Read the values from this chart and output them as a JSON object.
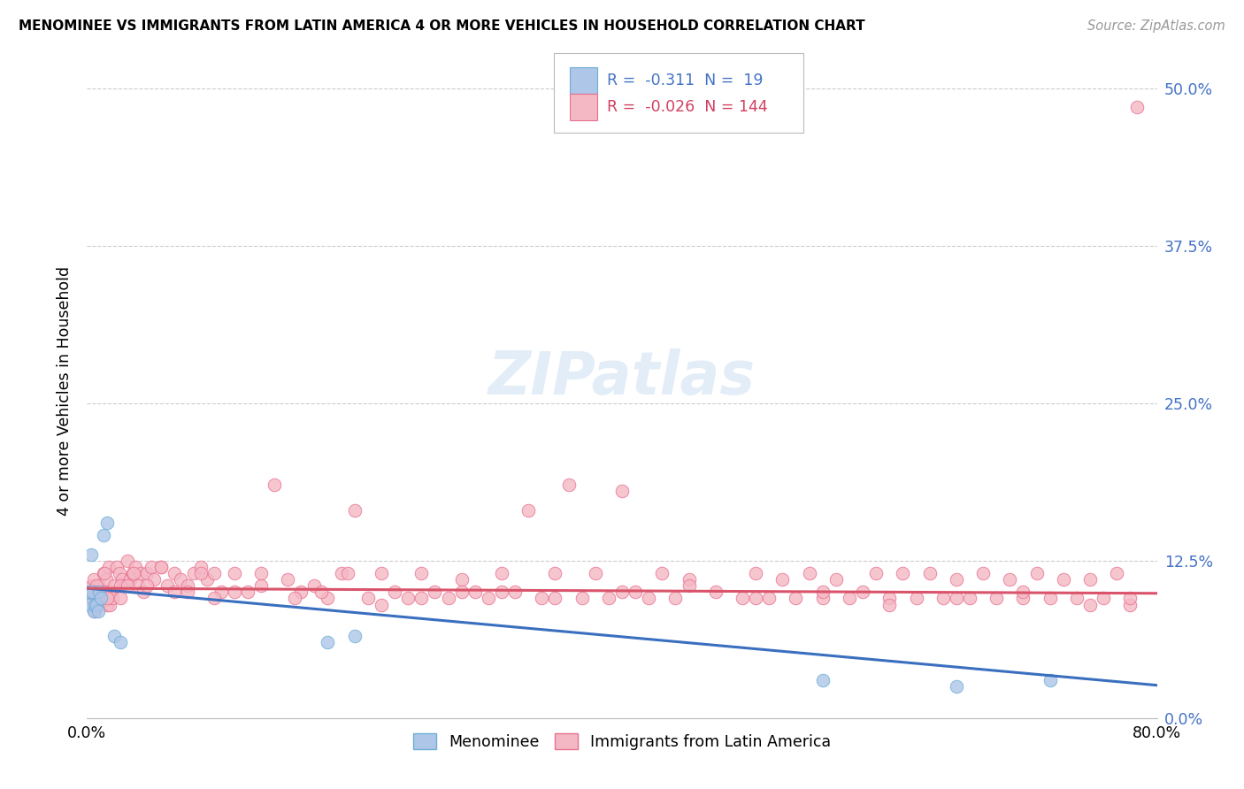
{
  "title": "MENOMINEE VS IMMIGRANTS FROM LATIN AMERICA 4 OR MORE VEHICLES IN HOUSEHOLD CORRELATION CHART",
  "source": "Source: ZipAtlas.com",
  "ylabel": "4 or more Vehicles in Household",
  "xlim": [
    0.0,
    0.8
  ],
  "ylim": [
    0.0,
    0.52
  ],
  "yticks": [
    0.0,
    0.125,
    0.25,
    0.375,
    0.5
  ],
  "ytick_labels": [
    "0.0%",
    "12.5%",
    "25.0%",
    "37.5%",
    "50.0%"
  ],
  "xtick_labels": [
    "0.0%",
    "80.0%"
  ],
  "menominee_color": "#aec6e8",
  "latin_color": "#f4b8c4",
  "menominee_edge": "#6baed6",
  "latin_edge": "#e87090",
  "trend_blue": "#3a6fbf",
  "trend_pink": "#d9536a",
  "R_menominee": -0.311,
  "N_menominee": 19,
  "R_latin": -0.026,
  "N_latin": 144,
  "watermark": "ZIPatlas",
  "background_color": "#ffffff",
  "grid_color": "#cccccc",
  "menominee_x": [
    0.001,
    0.002,
    0.003,
    0.004,
    0.005,
    0.006,
    0.007,
    0.008,
    0.009,
    0.01,
    0.012,
    0.015,
    0.02,
    0.025,
    0.18,
    0.2,
    0.55,
    0.65,
    0.72
  ],
  "menominee_y": [
    0.1,
    0.09,
    0.13,
    0.1,
    0.085,
    0.09,
    0.09,
    0.085,
    0.1,
    0.095,
    0.145,
    0.155,
    0.065,
    0.06,
    0.06,
    0.065,
    0.03,
    0.025,
    0.03
  ],
  "latin_x": [
    0.001,
    0.002,
    0.003,
    0.004,
    0.005,
    0.006,
    0.007,
    0.008,
    0.009,
    0.01,
    0.011,
    0.012,
    0.013,
    0.014,
    0.015,
    0.016,
    0.017,
    0.018,
    0.019,
    0.02,
    0.022,
    0.024,
    0.026,
    0.028,
    0.03,
    0.032,
    0.034,
    0.036,
    0.038,
    0.04,
    0.042,
    0.045,
    0.048,
    0.05,
    0.055,
    0.06,
    0.065,
    0.07,
    0.075,
    0.08,
    0.085,
    0.09,
    0.095,
    0.1,
    0.11,
    0.12,
    0.13,
    0.14,
    0.15,
    0.16,
    0.17,
    0.18,
    0.19,
    0.2,
    0.21,
    0.22,
    0.23,
    0.24,
    0.25,
    0.26,
    0.27,
    0.28,
    0.29,
    0.3,
    0.31,
    0.32,
    0.33,
    0.34,
    0.35,
    0.36,
    0.37,
    0.38,
    0.39,
    0.4,
    0.41,
    0.42,
    0.43,
    0.44,
    0.45,
    0.47,
    0.49,
    0.5,
    0.51,
    0.52,
    0.53,
    0.54,
    0.55,
    0.56,
    0.57,
    0.58,
    0.59,
    0.6,
    0.61,
    0.62,
    0.63,
    0.64,
    0.65,
    0.66,
    0.67,
    0.68,
    0.69,
    0.7,
    0.71,
    0.72,
    0.73,
    0.74,
    0.75,
    0.76,
    0.77,
    0.78,
    0.785,
    0.013,
    0.007,
    0.025,
    0.03,
    0.035,
    0.045,
    0.055,
    0.065,
    0.075,
    0.085,
    0.095,
    0.11,
    0.13,
    0.155,
    0.175,
    0.195,
    0.22,
    0.25,
    0.28,
    0.31,
    0.35,
    0.4,
    0.45,
    0.5,
    0.55,
    0.6,
    0.65,
    0.7,
    0.75,
    0.78,
    0.005,
    0.015,
    0.025
  ],
  "latin_y": [
    0.1,
    0.1,
    0.095,
    0.105,
    0.11,
    0.085,
    0.1,
    0.09,
    0.105,
    0.095,
    0.1,
    0.115,
    0.1,
    0.11,
    0.09,
    0.12,
    0.09,
    0.1,
    0.095,
    0.105,
    0.12,
    0.115,
    0.11,
    0.105,
    0.125,
    0.11,
    0.115,
    0.12,
    0.105,
    0.115,
    0.1,
    0.115,
    0.12,
    0.11,
    0.12,
    0.105,
    0.115,
    0.11,
    0.105,
    0.115,
    0.12,
    0.11,
    0.115,
    0.1,
    0.115,
    0.1,
    0.105,
    0.185,
    0.11,
    0.1,
    0.105,
    0.095,
    0.115,
    0.165,
    0.095,
    0.115,
    0.1,
    0.095,
    0.115,
    0.1,
    0.095,
    0.11,
    0.1,
    0.095,
    0.115,
    0.1,
    0.165,
    0.095,
    0.115,
    0.185,
    0.095,
    0.115,
    0.095,
    0.18,
    0.1,
    0.095,
    0.115,
    0.095,
    0.11,
    0.1,
    0.095,
    0.115,
    0.095,
    0.11,
    0.095,
    0.115,
    0.095,
    0.11,
    0.095,
    0.1,
    0.115,
    0.095,
    0.115,
    0.095,
    0.115,
    0.095,
    0.11,
    0.095,
    0.115,
    0.095,
    0.11,
    0.095,
    0.115,
    0.095,
    0.11,
    0.095,
    0.11,
    0.095,
    0.115,
    0.09,
    0.485,
    0.115,
    0.105,
    0.105,
    0.105,
    0.115,
    0.105,
    0.12,
    0.1,
    0.1,
    0.115,
    0.095,
    0.1,
    0.115,
    0.095,
    0.1,
    0.115,
    0.09,
    0.095,
    0.1,
    0.1,
    0.095,
    0.1,
    0.105,
    0.095,
    0.1,
    0.09,
    0.095,
    0.1,
    0.09,
    0.095,
    0.1,
    0.095,
    0.095
  ],
  "trend_men_x0": 0.0,
  "trend_men_y0": 0.103,
  "trend_men_x1": 0.8,
  "trend_men_y1": 0.026,
  "trend_lat_x0": 0.0,
  "trend_lat_y0": 0.103,
  "trend_lat_x1": 0.8,
  "trend_lat_y1": 0.099
}
